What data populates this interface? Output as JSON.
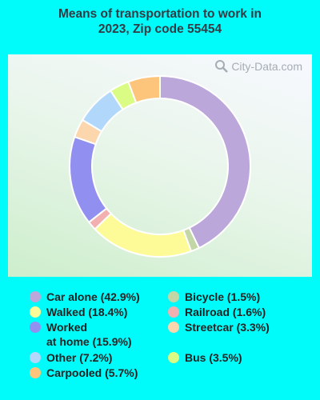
{
  "chart_data": {
    "type": "pie",
    "title": "Means of transportation to work in 2023, Zip code 55454",
    "title_lines": [
      "Means of transportation to work in",
      "2023, Zip code 55454"
    ],
    "slices": [
      {
        "label": "Car alone (42.9%)",
        "value": 42.9,
        "color": "#bba7da"
      },
      {
        "label": "Bicycle (1.5%)",
        "value": 1.5,
        "color": "#c3d6a6"
      },
      {
        "label": "Walked (18.4%)",
        "value": 18.4,
        "color": "#fdfa98"
      },
      {
        "label": "Railroad (1.6%)",
        "value": 1.6,
        "color": "#f2b0b0"
      },
      {
        "label": "Worked\nat home (15.9%)",
        "value": 15.9,
        "color": "#9190f0"
      },
      {
        "label": "Streetcar (3.3%)",
        "value": 3.3,
        "color": "#fcd6ad"
      },
      {
        "label": "Other (7.2%)",
        "value": 7.2,
        "color": "#b1d8fb"
      },
      {
        "label": "Bus (3.5%)",
        "value": 3.5,
        "color": "#dbfc84"
      },
      {
        "label": "Carpooled (5.7%)",
        "value": 5.7,
        "color": "#fdc57b"
      }
    ],
    "legend_order": [
      0,
      2,
      4,
      6,
      8,
      1,
      3,
      5,
      7
    ]
  },
  "watermark": "City-Data.com"
}
